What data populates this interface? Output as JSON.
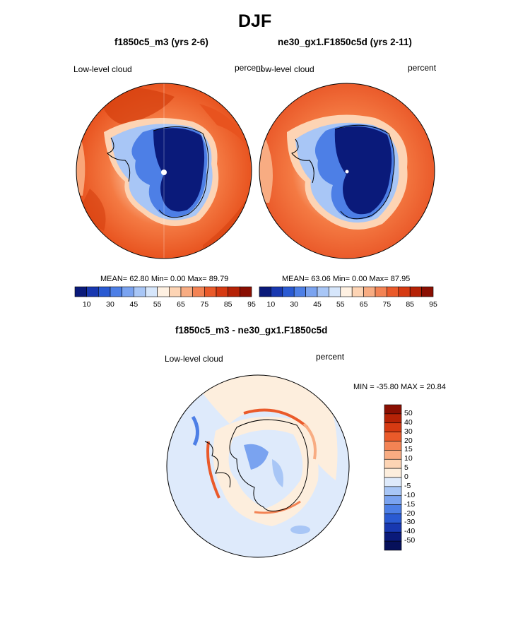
{
  "page": {
    "title": "DJF",
    "difference_title": "f1850c5_m3 - ne30_gx1.F1850c5d",
    "diff_minmax": "MIN = -35.80 MAX =  20.84"
  },
  "panels": [
    {
      "case_title": "f1850c5_m3 (yrs 2-6)",
      "field": "Low-level cloud",
      "units": "percent",
      "stats": "MEAN=  62.80  Min=   0.00  Max=  89.79"
    },
    {
      "case_title": "ne30_gx1.F1850c5d (yrs 2-11)",
      "field": "Low-level cloud",
      "units": "percent",
      "stats": "MEAN=  63.06  Min=   0.00  Max=  87.95"
    },
    {
      "field": "Low-level cloud",
      "units": "percent"
    }
  ],
  "colorbar_abs": {
    "tick_labels": [
      "10",
      "30",
      "45",
      "55",
      "65",
      "75",
      "85",
      "95"
    ],
    "colors": [
      "#0a1a7a",
      "#1838b0",
      "#2a5ad2",
      "#4d7fe6",
      "#7aa3f0",
      "#a8c6f6",
      "#d6e6fb",
      "#fff1e2",
      "#fdd4b4",
      "#f8ac82",
      "#f38354",
      "#ea5a2a",
      "#d63a12",
      "#b52206",
      "#8a0f02"
    ]
  },
  "colorbar_diff": {
    "tick_labels": [
      "50",
      "40",
      "30",
      "20",
      "15",
      "10",
      "5",
      "0",
      "-5",
      "-10",
      "-15",
      "-20",
      "-30",
      "-40",
      "-50"
    ],
    "colors": [
      "#8a0f02",
      "#b52206",
      "#d63a12",
      "#ea5a2a",
      "#f38354",
      "#f8ac82",
      "#fdd4b4",
      "#fdeedd",
      "#deeafb",
      "#a8c6f6",
      "#7aa3f0",
      "#4d7fe6",
      "#2a5ad2",
      "#1838b0",
      "#0a1a7a",
      "#06105a"
    ]
  },
  "colors": {
    "ocean_high": "#e8531f",
    "ocean_mid": "#f47a43",
    "ocean_low": "#f9a679",
    "ice_deep": "#0a1a7a",
    "ice_mid": "#2a5ad2",
    "diff_bg": "#deeafb",
    "diff_pos": "#fdeedd"
  }
}
